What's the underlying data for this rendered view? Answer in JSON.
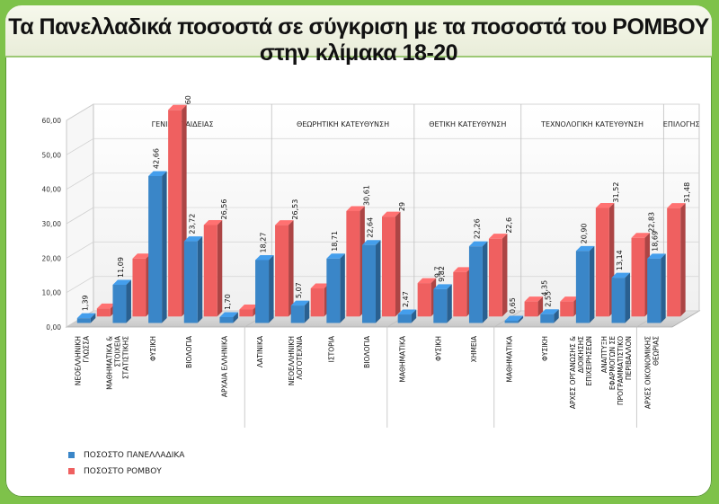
{
  "title": "Τα Πανελλαδικά ποσοστά σε σύγκριση με τα ποσοστά του ΡΟΜΒΟΥ στην κλίμακα 18-20",
  "colors": {
    "blue": "#3a86c8",
    "red": "#ef6060",
    "background": "#7ec24a"
  },
  "chart_data": {
    "type": "bar",
    "ylim": [
      0,
      60
    ],
    "yticks": [
      "0,00",
      "10,00",
      "20,00",
      "30,00",
      "40,00",
      "50,00",
      "60,00"
    ],
    "groups": [
      {
        "label": "ΓΕΝΙΚΗ ΠΑΙΔΕΙΑΣ",
        "start": 0,
        "end": 4
      },
      {
        "label": "ΘΕΩΡΗΤΙΚΗ ΚΑΤΕΥΘΥΝΣΗ",
        "start": 5,
        "end": 8
      },
      {
        "label": "ΘΕΤΙΚΗ ΚΑΤΕΥΘΥΝΣΗ",
        "start": 9,
        "end": 11
      },
      {
        "label": "ΤΕΧΝΟΛΟΓΙΚΗ ΚΑΤΕΥΘΥΝΣΗ",
        "start": 12,
        "end": 15
      },
      {
        "label": "ΕΠΙΛΟΓΗΣ",
        "start": 16,
        "end": 16
      }
    ],
    "categories": [
      "ΝΕΟΕΛΛΗΝΙΚΗ ΓΛΩΣΣΑ",
      "ΜΑΘΗΜΑΤΙΚΑ & ΣΤΟΙΧΕΙΑ ΣΤΑΤΙΣΤΙΚΗΣ",
      "ΦΥΣΙΚΗ",
      "ΒΙΟΛΟΓΙΑ",
      "ΑΡΧΑΙΑ ΕΛΛΗΝΙΚΑ",
      "ΛΑΤΙΝΙΚΑ",
      "ΝΕΟΕΛΛΗΝΙΚΗ ΛΟΓΟΤΕΧΝΙΑ",
      "ΙΣΤΟΡΙΑ",
      "ΒΙΟΛΟΓΙΑ",
      "ΜΑΘΗΜΑΤΙΚΑ",
      "ΦΥΣΙΚΗ",
      "ΧΗΜΕΙΑ",
      "ΜΑΘΗΜΑΤΙΚΑ",
      "ΦΥΣΙΚΗ",
      "ΑΡΧΕΣ ΟΡΓΑΝΩΣΗΣ & ΔΙΟΙΚΗΣΗΣ ΕΠΙΧΕΙΡΗΣΕΩΝ",
      "ΑΝΑΠΤΥΞΗ ΕΦΑΡΜΟΓΩΝ ΣΕ ΠΡΟΓΡΑΜΜΑΤΙΣΤΙΚΟ ΠΕΡΙΒΑΛΛΟΝ",
      "ΑΡΧΕΣ ΟΙΚΟΝΟΜΙΚΗΣ ΘΕΩΡΙΑΣ"
    ],
    "series": [
      {
        "name": "ΠΟΣΟΣΤΟ ΠΑΝΕΛΛΑΔΙΚΑ",
        "values": [
          1.39,
          11.09,
          42.66,
          23.72,
          1.7,
          18.27,
          5.07,
          18.71,
          22.64,
          2.47,
          9.82,
          22.26,
          0.65,
          2.55,
          20.9,
          13.14,
          18.69
        ],
        "labels": [
          "1,39",
          "11,09",
          "42,66",
          "23,72",
          "1,70",
          "18,27",
          "5,07",
          "18,71",
          "22,64",
          "2,47",
          "9,82",
          "22,26",
          "0,65",
          "2,55",
          "20,90",
          "13,14",
          "18,69"
        ]
      },
      {
        "name": "ΠΟΣΟΣΤΟ ΡΟΜΒΟΥ",
        "values": [
          2.33,
          16.83,
          60,
          26.56,
          2.04,
          26.53,
          8.16,
          30.61,
          29,
          9.7,
          12.9,
          22.6,
          4.35,
          4.35,
          31.52,
          22.83,
          31.48
        ],
        "labels": [
          "2,33",
          "16,83",
          "60",
          "26,56",
          "2,04",
          "26,53",
          "8,16",
          "30,61",
          "29",
          "9,7",
          "12,9",
          "22,6",
          "4,35",
          "4,35",
          "31,52",
          "22,83",
          "31,48"
        ]
      }
    ],
    "legend": "bottom-left"
  }
}
